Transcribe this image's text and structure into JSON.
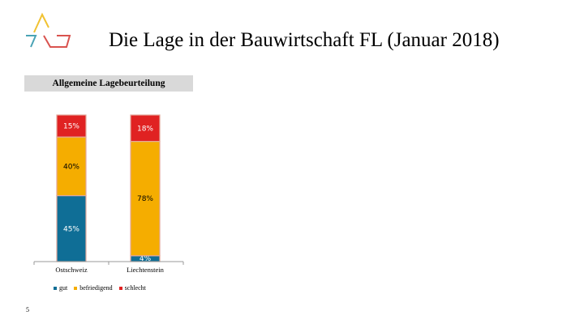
{
  "slide": {
    "title": "Die Lage in der Bauwirtschaft FL (Januar 2018)",
    "page_number": "5"
  },
  "colors": {
    "gut": "#0f6e96",
    "befriedigend": "#f5ad00",
    "schlecht": "#e02222",
    "bar_edge": "#e3a89b",
    "header_bg": "#d9d9d9",
    "logo_yellow": "#f1c232",
    "logo_teal": "#4aa3b5",
    "logo_red": "#d9534f"
  },
  "chart_data": {
    "type": "bar",
    "stacked": true,
    "title": "Allgemeine Lagebeurteilung",
    "categories": [
      "Ostschweiz",
      "Liechtenstein"
    ],
    "series": [
      {
        "name": "gut",
        "values": [
          45,
          4
        ],
        "color": "#0f6e96"
      },
      {
        "name": "befriedigend",
        "values": [
          40,
          78
        ],
        "color": "#f5ad00"
      },
      {
        "name": "schlecht",
        "values": [
          15,
          18
        ],
        "color": "#e02222"
      }
    ],
    "data_labels": [
      [
        "45%",
        "4%"
      ],
      [
        "40%",
        "78%"
      ],
      [
        "15%",
        "18%"
      ]
    ],
    "ylim": [
      0,
      100
    ],
    "grid": false,
    "legend": "bottom"
  }
}
